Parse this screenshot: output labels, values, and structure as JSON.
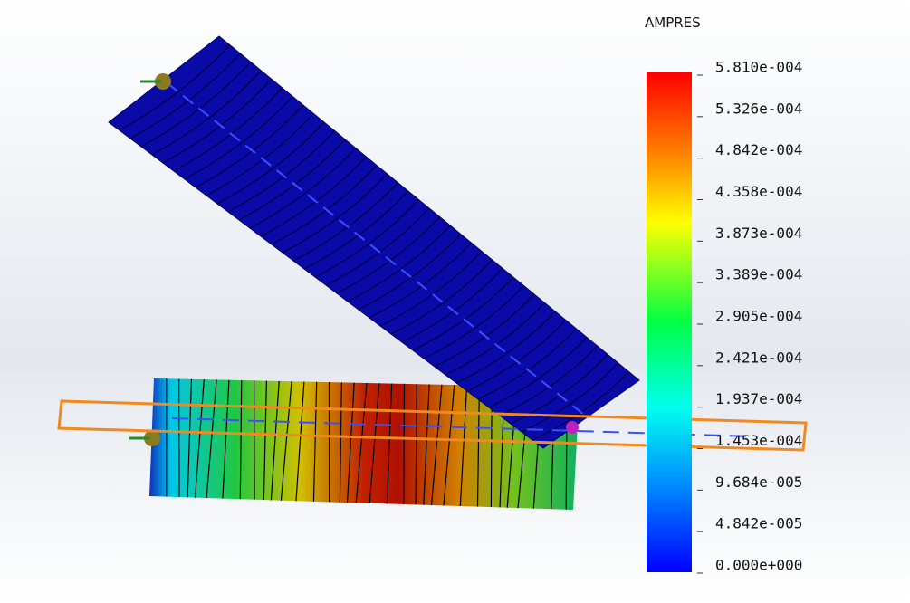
{
  "legend": {
    "title": "AMPRES",
    "labels": [
      "5.810e-004",
      "5.326e-004",
      "4.842e-004",
      "4.358e-004",
      "3.873e-004",
      "3.389e-004",
      "2.905e-004",
      "2.421e-004",
      "1.937e-004",
      "1.453e-004",
      "9.684e-005",
      "4.842e-005",
      "0.000e+000"
    ]
  }
}
